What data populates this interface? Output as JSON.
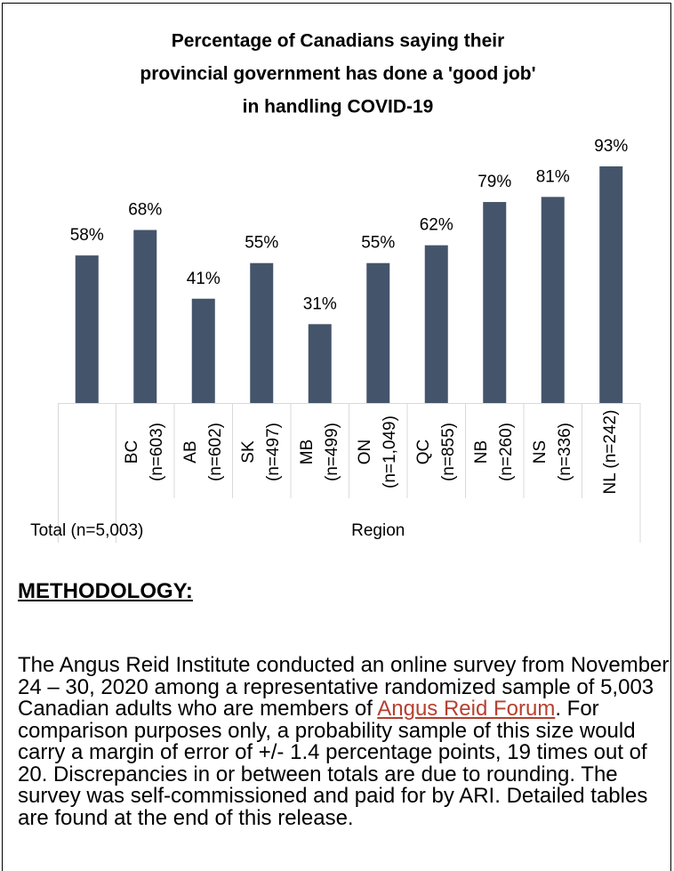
{
  "chart_data": {
    "type": "bar",
    "title": [
      "Percentage of Canadians saying their",
      "provincial government has done a 'good job'",
      "in handling COVID-19"
    ],
    "categories": [
      null,
      "BC (n=603)",
      "AB (n=602)",
      "SK (n=497)",
      "MB (n=499)",
      "ON (n=1,049)",
      "QC (n=855)",
      "NB (n=260)",
      "NS (n=336)",
      "NL (n=242)"
    ],
    "category_groups": [
      {
        "label": "Total (n=5,003)",
        "size": 1
      },
      {
        "label": "Region",
        "size": 9
      }
    ],
    "values": [
      58,
      68,
      41,
      55,
      31,
      55,
      62,
      79,
      81,
      93
    ],
    "value_labels": [
      "58%",
      "68%",
      "41%",
      "55%",
      "31%",
      "55%",
      "62%",
      "79%",
      "81%",
      "93%"
    ],
    "color": "#44546a"
  },
  "methodology": {
    "heading": "METHODOLOGY:",
    "text_before": "The Angus Reid Institute conducted an online survey from November 24 – 30, 2020 among a representative randomized sample of 5,003 Canadian adults who are members of ",
    "link": "Angus Reid Forum",
    "text_after": ". For comparison purposes only, a probability sample of this size would carry a margin of error of +/- 1.4 percentage points, 19 times out of 20. Discrepancies in or between totals are due to rounding. The survey was self-commissioned and paid for by ARI. Detailed tables are found at the end of this release."
  }
}
